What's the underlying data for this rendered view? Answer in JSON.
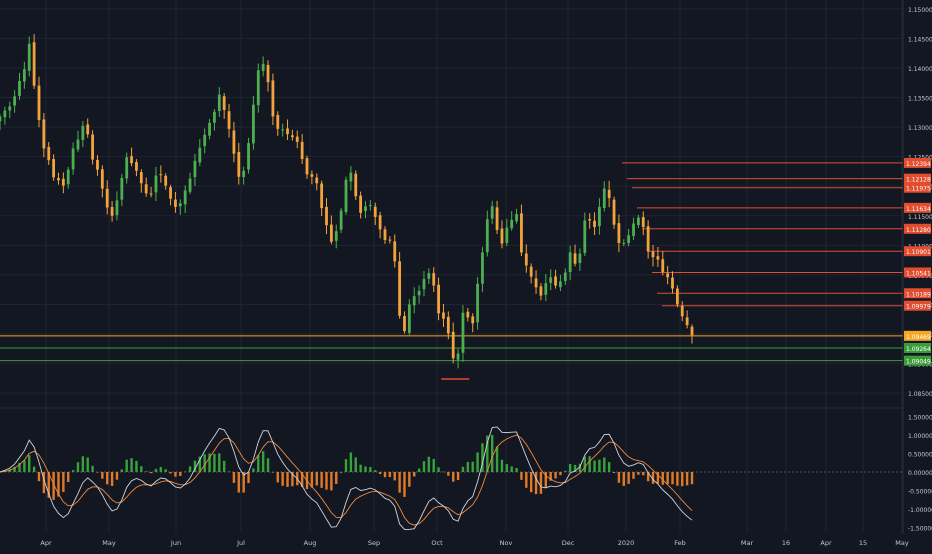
{
  "colors": {
    "background": "#131722",
    "grid": "#1f2433",
    "axis_text": "#c4c7cf",
    "candle_up": "#4caf50",
    "candle_down": "#f2a33c",
    "level_red": "#e24c2f",
    "level_orange": "#f5a623",
    "level_green": "#3a9d3a",
    "macd_line": "#d1d4dc",
    "signal_line": "#f08a3c",
    "hist_pos": "#38a23b",
    "hist_neg": "#e07a26"
  },
  "chart_data": [
    {
      "type": "candlestick",
      "name": "price",
      "ylim": [
        1.0835,
        1.1515
      ],
      "y_ticks": [
        "1.15000",
        "1.14500",
        "1.14000",
        "1.13500",
        "1.13000",
        "1.12500",
        "1.12000",
        "1.11500",
        "1.11000",
        "1.10500",
        "1.10000",
        "1.09500",
        "1.09000",
        "1.08500"
      ],
      "close_series": [
        1.1318,
        1.1328,
        1.1335,
        1.1352,
        1.1378,
        1.1398,
        1.1441,
        1.137,
        1.1312,
        1.1264,
        1.1244,
        1.1215,
        1.121,
        1.1201,
        1.1228,
        1.1264,
        1.1279,
        1.1302,
        1.1288,
        1.1245,
        1.1228,
        1.1196,
        1.1164,
        1.115,
        1.1176,
        1.1214,
        1.1249,
        1.1239,
        1.1226,
        1.1205,
        1.1188,
        1.1187,
        1.1218,
        1.1219,
        1.1201,
        1.1179,
        1.1165,
        1.1171,
        1.1193,
        1.1213,
        1.1243,
        1.1265,
        1.1287,
        1.1307,
        1.1326,
        1.1355,
        1.1329,
        1.1297,
        1.1255,
        1.1216,
        1.1226,
        1.1273,
        1.1338,
        1.1396,
        1.1407,
        1.1376,
        1.1318,
        1.1297,
        1.1296,
        1.1288,
        1.1283,
        1.1275,
        1.1246,
        1.122,
        1.1216,
        1.1205,
        1.1163,
        1.1134,
        1.1106,
        1.1124,
        1.1159,
        1.1211,
        1.1223,
        1.1183,
        1.1155,
        1.1166,
        1.1168,
        1.1148,
        1.1127,
        1.1109,
        1.1108,
        1.1073,
        1.0981,
        1.0955,
        1.1,
        1.1014,
        1.1023,
        1.1043,
        1.1053,
        1.1032,
        1.0985,
        1.0976,
        1.0951,
        1.0909,
        1.0917,
        1.0986,
        1.0978,
        1.0968,
        1.1035,
        1.1088,
        1.1144,
        1.1166,
        1.1126,
        1.1103,
        1.113,
        1.1143,
        1.1153,
        1.1088,
        1.1066,
        1.1047,
        1.1029,
        1.1015,
        1.1036,
        1.1046,
        1.1032,
        1.1039,
        1.1054,
        1.1088,
        1.1069,
        1.1086,
        1.1142,
        1.1142,
        1.1131,
        1.1165,
        1.1196,
        1.118,
        1.1135,
        1.1104,
        1.1104,
        1.1117,
        1.1137,
        1.1147,
        1.1131,
        1.109,
        1.108,
        1.1076,
        1.1055,
        1.1046,
        1.1027,
        1.1,
        1.098,
        1.0965,
        1.0948
      ]
    },
    {
      "type": "histogram+line",
      "name": "oscillator",
      "ylim": [
        -1.62,
        1.62
      ],
      "y_ticks": [
        "1.50000",
        "1.00000",
        "0.50000",
        "0.00000",
        "-0.50000",
        "-1.00000",
        "-1.50000"
      ]
    }
  ],
  "x_ticks": [
    "Apr",
    "May",
    "Jun",
    "Jul",
    "Aug",
    "Sep",
    "Oct",
    "Nov",
    "Dec",
    "2020",
    "Feb",
    "Mar",
    "16",
    "Apr",
    "15",
    "May"
  ],
  "levels": [
    {
      "price": 1.12394,
      "label": "1.12394",
      "style": "red"
    },
    {
      "price": 1.12128,
      "label": "1.12128",
      "style": "red"
    },
    {
      "price": 1.11975,
      "label": "1.11975",
      "style": "red"
    },
    {
      "price": 1.11634,
      "label": "1.11634",
      "style": "red"
    },
    {
      "price": 1.1128,
      "label": "1.11280",
      "style": "red"
    },
    {
      "price": 1.10901,
      "label": "1.10901",
      "style": "red"
    },
    {
      "price": 1.10541,
      "label": "1.10541",
      "style": "red"
    },
    {
      "price": 1.10189,
      "label": "1.10189",
      "style": "red"
    },
    {
      "price": 1.09979,
      "label": "1.09979",
      "style": "red"
    },
    {
      "price": 1.09469,
      "label": "1.09469",
      "style": "orange"
    },
    {
      "price": 1.09264,
      "label": "1.09264",
      "style": "green"
    },
    {
      "price": 1.09049,
      "label": "1.09049",
      "style": "green"
    }
  ]
}
